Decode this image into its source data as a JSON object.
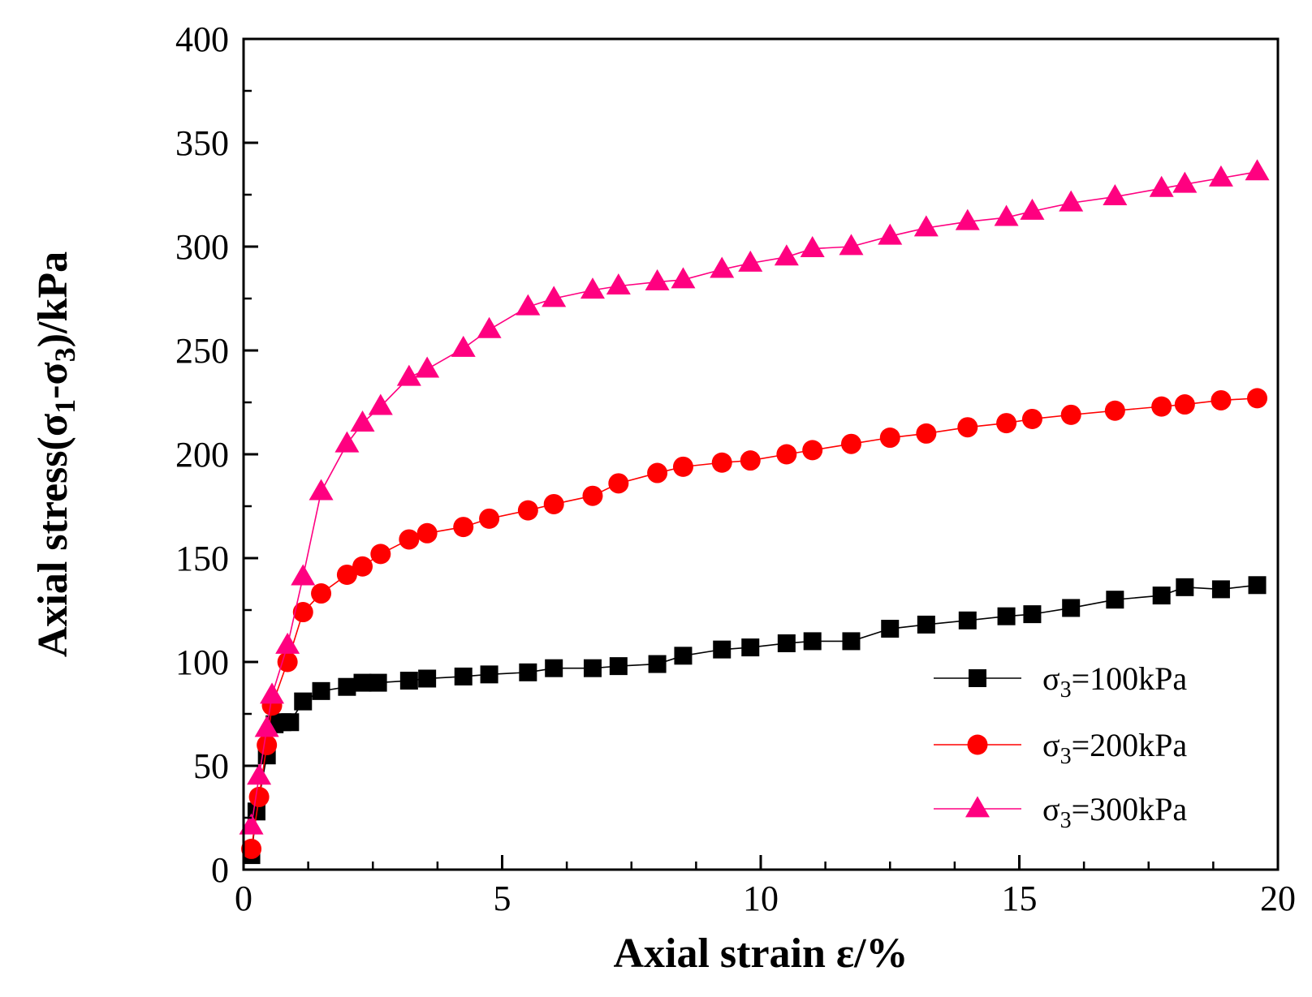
{
  "chart_data": {
    "type": "line",
    "title": "",
    "xlabel": "Axial strain ε/%",
    "ylabel_parts": [
      "Axial stress(σ",
      "1",
      "-σ",
      "3",
      ")/kPa"
    ],
    "xlim": [
      0,
      20
    ],
    "ylim": [
      0,
      400
    ],
    "x_ticks": [
      0,
      5,
      10,
      15,
      20
    ],
    "x_tick_labels": [
      "0",
      "5",
      "10",
      "15",
      "20"
    ],
    "y_ticks": [
      0,
      50,
      100,
      150,
      200,
      250,
      300,
      350,
      400
    ],
    "y_tick_labels": [
      "0",
      "50",
      "100",
      "150",
      "200",
      "250",
      "300",
      "350",
      "400"
    ],
    "grid": false,
    "legend_position": "bottom-right",
    "series": [
      {
        "name": "σ3=100kPa",
        "legend_prefix": "σ",
        "legend_sub": "3",
        "legend_suffix": "=100kPa",
        "color": "#000000",
        "marker": "square",
        "x": [
          0.15,
          0.25,
          0.45,
          0.6,
          0.75,
          0.9,
          1.15,
          1.5,
          2.0,
          2.3,
          2.6,
          3.2,
          3.55,
          4.25,
          4.75,
          5.5,
          6.0,
          6.75,
          7.25,
          8.0,
          8.5,
          9.25,
          9.8,
          10.5,
          11.0,
          11.75,
          12.5,
          13.2,
          14.0,
          14.75,
          15.25,
          16.0,
          16.85,
          17.75,
          18.2,
          18.9,
          19.6
        ],
        "y": [
          7,
          28,
          55,
          70,
          71,
          71,
          81,
          86,
          88,
          90,
          90,
          91,
          92,
          93,
          94,
          95,
          97,
          97,
          98,
          99,
          103,
          106,
          107,
          109,
          110,
          110,
          116,
          118,
          120,
          122,
          123,
          126,
          130,
          132,
          136,
          135,
          137
        ]
      },
      {
        "name": "σ3=200kPa",
        "legend_prefix": "σ",
        "legend_sub": "3",
        "legend_suffix": "=200kPa",
        "color": "#ff0000",
        "marker": "circle",
        "x": [
          0.15,
          0.3,
          0.45,
          0.55,
          0.85,
          1.15,
          1.5,
          2.0,
          2.3,
          2.65,
          3.2,
          3.55,
          4.25,
          4.75,
          5.5,
          6.0,
          6.75,
          7.25,
          8.0,
          8.5,
          9.25,
          9.8,
          10.5,
          11.0,
          11.75,
          12.5,
          13.2,
          14.0,
          14.75,
          15.25,
          16.0,
          16.85,
          17.75,
          18.2,
          18.9,
          19.6
        ],
        "y": [
          10,
          35,
          60,
          79,
          100,
          124,
          133,
          142,
          146,
          152,
          159,
          162,
          165,
          169,
          173,
          176,
          180,
          186,
          191,
          194,
          196,
          197,
          200,
          202,
          205,
          208,
          210,
          213,
          215,
          217,
          219,
          221,
          223,
          224,
          226,
          227
        ]
      },
      {
        "name": "σ3=300kPa",
        "legend_prefix": "σ",
        "legend_sub": "3",
        "legend_suffix": "=300kPa",
        "color": "#ff0080",
        "marker": "triangle",
        "x": [
          0.15,
          0.3,
          0.45,
          0.55,
          0.85,
          1.15,
          1.5,
          2.0,
          2.3,
          2.65,
          3.2,
          3.55,
          4.25,
          4.75,
          5.5,
          6.0,
          6.75,
          7.25,
          8.0,
          8.5,
          9.25,
          9.8,
          10.5,
          11.0,
          11.75,
          12.5,
          13.2,
          14.0,
          14.75,
          15.25,
          16.0,
          16.85,
          17.75,
          18.2,
          18.9,
          19.6
        ],
        "y": [
          21,
          45,
          68,
          84,
          108,
          141,
          182,
          205,
          215,
          223,
          237,
          241,
          251,
          260,
          271,
          275,
          279,
          281,
          283,
          284,
          289,
          292,
          295,
          299,
          300,
          305,
          309,
          312,
          314,
          317,
          321,
          324,
          328,
          330,
          333,
          336
        ]
      }
    ]
  }
}
